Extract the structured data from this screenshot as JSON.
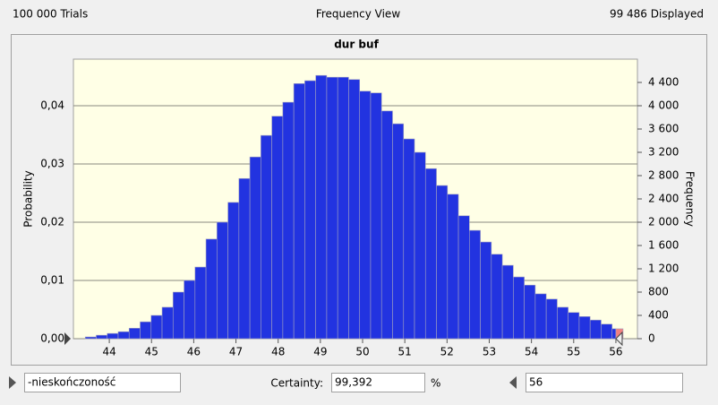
{
  "header": {
    "trials": "100 000 Trials",
    "view": "Frequency View",
    "displayed": "99 486 Displayed"
  },
  "chart_data": {
    "type": "histogram",
    "title": "dur buf",
    "ylabel": "Probability",
    "y2label": "Frequency",
    "bins": [
      43.43,
      43.69,
      43.95,
      44.21,
      44.47,
      44.73,
      44.99,
      45.25,
      45.51,
      45.77,
      46.03,
      46.29,
      46.55,
      46.81,
      47.07,
      47.33,
      47.59,
      47.85,
      48.11,
      48.37,
      48.63,
      48.89,
      49.15,
      49.41,
      49.67,
      49.93,
      50.19,
      50.45,
      50.71,
      50.97,
      51.23,
      51.49,
      51.75,
      52.01,
      52.27,
      52.53,
      52.79,
      53.05,
      53.31,
      53.57,
      53.83,
      54.09,
      54.35,
      54.61,
      54.87,
      55.13,
      55.39,
      55.65,
      55.91,
      56.17
    ],
    "values": [
      0.0003,
      0.0006,
      0.0009,
      0.0012,
      0.0018,
      0.0029,
      0.004,
      0.0054,
      0.008,
      0.01,
      0.0123,
      0.0171,
      0.02,
      0.0234,
      0.0275,
      0.0312,
      0.0349,
      0.0382,
      0.0406,
      0.0438,
      0.0443,
      0.0452,
      0.0449,
      0.0449,
      0.0445,
      0.0425,
      0.0422,
      0.0391,
      0.0369,
      0.0343,
      0.032,
      0.0292,
      0.0263,
      0.0248,
      0.0211,
      0.0186,
      0.0166,
      0.0145,
      0.0126,
      0.0106,
      0.0092,
      0.0077,
      0.0068,
      0.0054,
      0.0045,
      0.0038,
      0.0032,
      0.0025,
      0.0017
    ],
    "color": "#2233e0",
    "excluded_color": "#f08080",
    "plot_background": "#ffffe6",
    "grid": true,
    "xlim": [
      43.15,
      56.51
    ],
    "xticks": [
      44,
      45,
      46,
      47,
      48,
      49,
      50,
      51,
      52,
      53,
      54,
      55,
      56
    ],
    "ylim": [
      0,
      0.048
    ],
    "yticks": [
      {
        "value": 0,
        "label": "0,00"
      },
      {
        "value": 0.01,
        "label": "0,01"
      },
      {
        "value": 0.02,
        "label": "0,02"
      },
      {
        "value": 0.03,
        "label": "0,03"
      },
      {
        "value": 0.04,
        "label": "0,04"
      }
    ],
    "y2lim": [
      0,
      4800
    ],
    "y2ticks": [
      0,
      400,
      800,
      {
        "value": 1200,
        "label": "1 200"
      },
      {
        "value": 1600,
        "label": "1 600"
      },
      {
        "value": 2000,
        "label": "2 000"
      },
      {
        "value": 2400,
        "label": "2 400"
      },
      {
        "value": 2800,
        "label": "2 800"
      },
      {
        "value": 3200,
        "label": "3 200"
      },
      {
        "value": 3600,
        "label": "3 600"
      },
      {
        "value": 4000,
        "label": "4 000"
      },
      {
        "value": 4400,
        "label": "4 400"
      }
    ]
  },
  "controls": {
    "lower": "-nieskończoność",
    "certainty_label": "Certainty:",
    "certainty": "99,392",
    "percent": "%",
    "upper": 56
  }
}
